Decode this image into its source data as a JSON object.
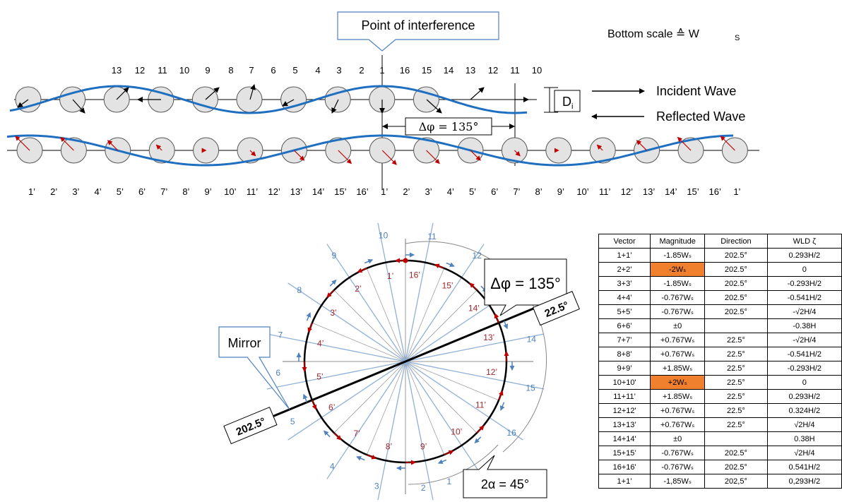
{
  "top": {
    "point_label": "Point of interference",
    "bottom_scale": "Bottom scale ≙ W",
    "bottom_scale_sub": "S",
    "incident": "Incident Wave",
    "reflected": "Reflected Wave",
    "di": "D",
    "di_sub": "i",
    "delta_phi": "Δφ = 135°",
    "top_numbers": [
      "13",
      "12",
      "11",
      "10",
      "9",
      "8",
      "7",
      "6",
      "5",
      "4",
      "3",
      "2",
      "1",
      "16",
      "15",
      "14",
      "13",
      "12",
      "11",
      "10"
    ],
    "bottom_numbers": [
      "1’",
      "2’",
      "3’",
      "4’",
      "5’",
      "6’",
      "7’",
      "8’",
      "9’",
      "10’",
      "11’",
      "12’",
      "13’",
      "14’",
      "15’",
      "16’",
      "1’",
      "2’",
      "3’",
      "4’",
      "5’",
      "6’",
      "7’",
      "8’",
      "9’",
      "10’",
      "11’",
      "12’",
      "13’",
      "14’",
      "15’",
      "16’",
      "1’"
    ]
  },
  "circle": {
    "mirror": "Mirror",
    "delta_phi": "Δφ = 135°",
    "two_alpha": "2α = 45°",
    "angle_a": "22.5°",
    "angle_b": "202.5°",
    "blue_labels": [
      "1",
      "2",
      "3",
      "4",
      "5",
      "6",
      "7",
      "8",
      "9",
      "10",
      "11",
      "12",
      "13",
      "14",
      "15",
      "16"
    ],
    "red_labels": [
      "1’",
      "2’",
      "3’",
      "4’",
      "5’",
      "6’",
      "7’",
      "8’",
      "9’",
      "10’",
      "11’",
      "12’",
      "13’",
      "14’",
      "15’",
      "16’"
    ]
  },
  "table": {
    "headers": [
      "Vector",
      "Magnitude",
      "Direction",
      "WLD ζ"
    ],
    "rows": [
      [
        "1+1’",
        "-1.85Wₛ",
        "202.5°",
        "0.293H/2"
      ],
      [
        "2+2’",
        "-2Wₛ",
        "202.5°",
        "0"
      ],
      [
        "3+3’",
        "-1.85Wₛ",
        "202.5°",
        "-0.293H/2"
      ],
      [
        "4+4’",
        "-0.767Wₛ",
        "202.5°",
        "-0.541H/2"
      ],
      [
        "5+5’",
        "-0.767Wₛ",
        "202.5°",
        "-√2H/4"
      ],
      [
        "6+6’",
        "±0",
        "",
        "-0.38H"
      ],
      [
        "7+7’",
        "+0.767Wₛ",
        "22.5°",
        "-√2H/4"
      ],
      [
        "8+8’",
        "+0.767Wₛ",
        "22.5°",
        "-0.541H/2"
      ],
      [
        "9+9’",
        "+1.85Wₛ",
        "22.5°",
        "-0.293H/2"
      ],
      [
        "10+10'",
        "+2Wₛ",
        "22.5°",
        "0"
      ],
      [
        "11+11’",
        "+1.85Wₛ",
        "22.5°",
        "0.293H/2"
      ],
      [
        "12+12'",
        "+0.767Wₛ",
        "22.5°",
        "0.324H/2"
      ],
      [
        "13+13’",
        "+0.767Wₛ",
        "22.5°",
        "√2H/4"
      ],
      [
        "14+14'",
        "±0",
        "",
        "0.38H"
      ],
      [
        "15+15’",
        "-0.767Wₛ",
        "202.5°",
        "√2H/4"
      ],
      [
        "16+16'",
        "-0.767Wₛ",
        "202.5°",
        "0.541H/2"
      ],
      [
        "1+1’",
        "-1,85Wₛ",
        "202,5°",
        "0,293H/2"
      ]
    ],
    "highlight_rows": [
      1,
      9
    ],
    "highlight_color": "#f07f2e"
  },
  "colors": {
    "wave": "#1f6fc1",
    "red_arrow": "#c00000",
    "blue_arrow": "#4f81bd"
  }
}
